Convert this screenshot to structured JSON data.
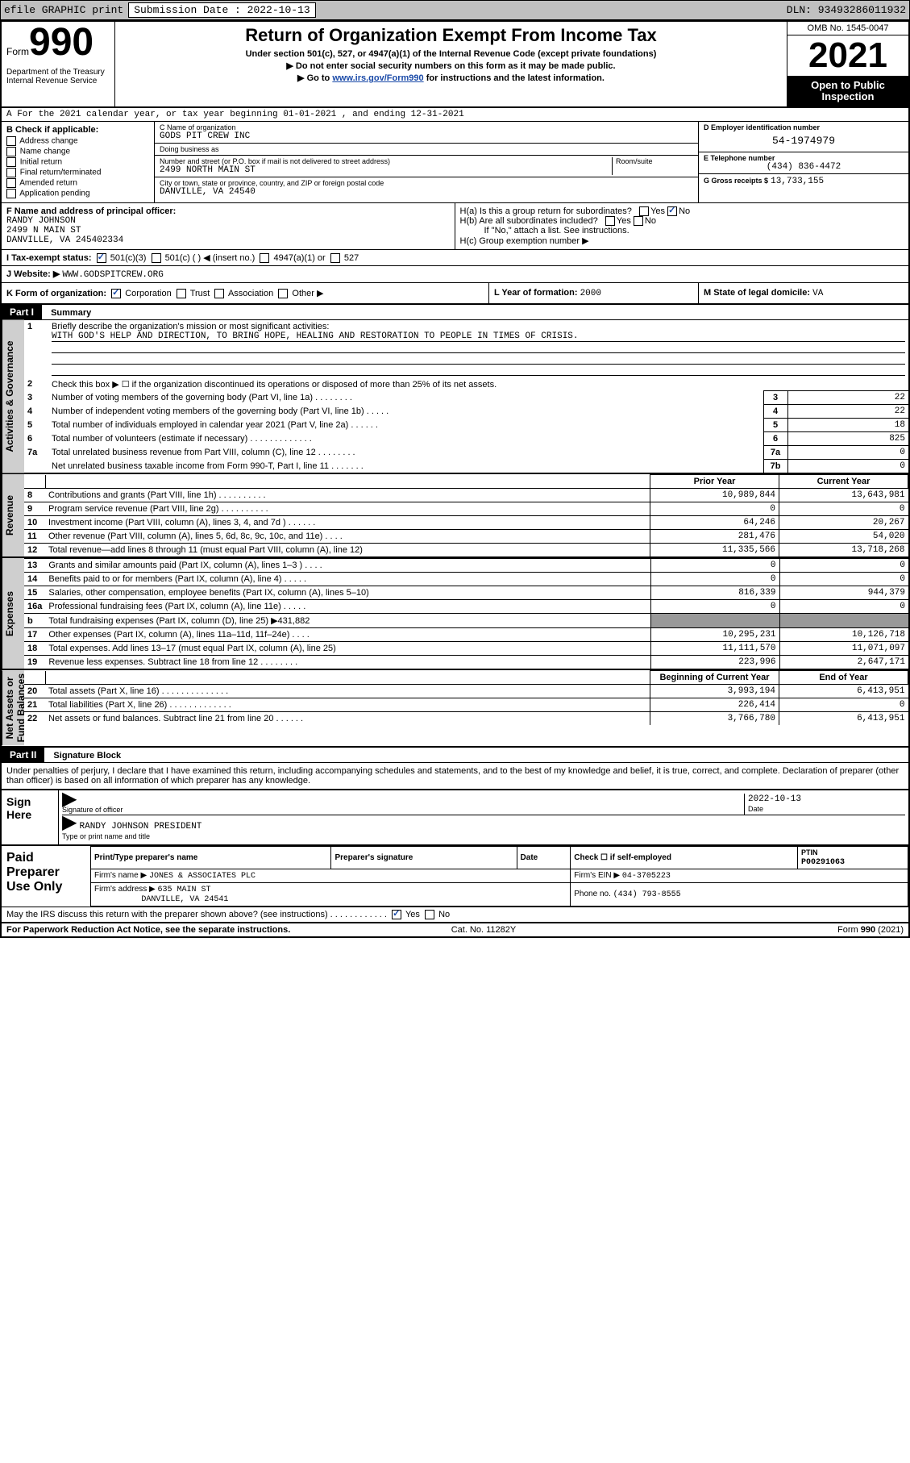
{
  "topbar": {
    "efile": "efile GRAPHIC print",
    "subdate_lbl": "Submission Date : 2022-10-13",
    "dln": "DLN: 93493286011932"
  },
  "header": {
    "form_lbl": "Form",
    "form_no": "990",
    "title": "Return of Organization Exempt From Income Tax",
    "sub1": "Under section 501(c), 527, or 4947(a)(1) of the Internal Revenue Code (except private foundations)",
    "sub2": "▶ Do not enter social security numbers on this form as it may be made public.",
    "sub3_pre": "▶ Go to ",
    "sub3_link": "www.irs.gov/Form990",
    "sub3_post": " for instructions and the latest information.",
    "dept": "Department of the Treasury\nInternal Revenue Service",
    "omb": "OMB No. 1545-0047",
    "year": "2021",
    "otp": "Open to Public Inspection"
  },
  "row_a": "A For the 2021 calendar year, or tax year beginning 01-01-2021   , and ending 12-31-2021",
  "b": {
    "lbl": "B Check if applicable:",
    "items": [
      "Address change",
      "Name change",
      "Initial return",
      "Final return/terminated",
      "Amended return",
      "Application pending"
    ]
  },
  "c": {
    "name_lbl": "C Name of organization",
    "name": "GODS PIT CREW INC",
    "dba_lbl": "Doing business as",
    "dba": "",
    "addr_lbl": "Number and street (or P.O. box if mail is not delivered to street address)",
    "room_lbl": "Room/suite",
    "addr": "2499 NORTH MAIN ST",
    "city_lbl": "City or town, state or province, country, and ZIP or foreign postal code",
    "city": "DANVILLE, VA  24540"
  },
  "d": {
    "ein_lbl": "D Employer identification number",
    "ein": "54-1974979",
    "tel_lbl": "E Telephone number",
    "tel": "(434) 836-4472",
    "gross_lbl": "G Gross receipts $",
    "gross": "13,733,155"
  },
  "f": {
    "lbl": "F Name and address of principal officer:",
    "name": "RANDY JOHNSON",
    "addr1": "2499 N MAIN ST",
    "addr2": "DANVILLE, VA  245402334"
  },
  "h": {
    "a": "H(a)  Is this a group return for subordinates?",
    "b": "H(b)  Are all subordinates included?",
    "b2": "If \"No,\" attach a list. See instructions.",
    "c": "H(c)  Group exemption number ▶"
  },
  "i": {
    "lbl": "I   Tax-exempt status:",
    "opts": [
      "501(c)(3)",
      "501(c) (   ) ◀ (insert no.)",
      "4947(a)(1) or",
      "527"
    ]
  },
  "j": {
    "lbl": "J   Website: ▶",
    "val": "WWW.GODSPITCREW.ORG"
  },
  "k": {
    "lbl": "K Form of organization:",
    "opts": [
      "Corporation",
      "Trust",
      "Association",
      "Other ▶"
    ]
  },
  "l": {
    "lbl": "L Year of formation:",
    "val": "2000"
  },
  "m": {
    "lbl": "M State of legal domicile:",
    "val": "VA"
  },
  "part1": {
    "hdr": "Part I",
    "title": "Summary"
  },
  "summary": {
    "q1": "Briefly describe the organization's mission or most significant activities:",
    "q1_ans": "WITH GOD'S HELP AND DIRECTION, TO BRING HOPE, HEALING AND RESTORATION TO PEOPLE IN TIMES OF CRISIS.",
    "q2": "Check this box ▶ ☐  if the organization discontinued its operations or disposed of more than 25% of its net assets.",
    "rows": [
      {
        "n": "3",
        "t": "Number of voting members of the governing body (Part VI, line 1a)   .   .   .   .   .   .   .   .",
        "l": "3",
        "v": "22"
      },
      {
        "n": "4",
        "t": "Number of independent voting members of the governing body (Part VI, line 1b)   .   .   .   .   .",
        "l": "4",
        "v": "22"
      },
      {
        "n": "5",
        "t": "Total number of individuals employed in calendar year 2021 (Part V, line 2a)   .   .   .   .   .   .",
        "l": "5",
        "v": "18"
      },
      {
        "n": "6",
        "t": "Total number of volunteers (estimate if necessary)   .   .   .   .   .   .   .   .   .   .   .   .   .",
        "l": "6",
        "v": "825"
      },
      {
        "n": "7a",
        "t": "Total unrelated business revenue from Part VIII, column (C), line 12   .   .   .   .   .   .   .   .",
        "l": "7a",
        "v": "0"
      },
      {
        "n": "",
        "t": "Net unrelated business taxable income from Form 990-T, Part I, line 11   .   .   .   .   .   .   .",
        "l": "7b",
        "v": "0"
      }
    ]
  },
  "revenue": {
    "h1": "b",
    "h2": "Prior Year",
    "h3": "Current Year",
    "rows": [
      {
        "n": "8",
        "t": "Contributions and grants (Part VIII, line 1h)   .   .   .   .   .   .   .   .   .   .",
        "p": "10,989,844",
        "c": "13,643,981"
      },
      {
        "n": "9",
        "t": "Program service revenue (Part VIII, line 2g)   .   .   .   .   .   .   .   .   .   .",
        "p": "0",
        "c": "0"
      },
      {
        "n": "10",
        "t": "Investment income (Part VIII, column (A), lines 3, 4, and 7d )   .   .   .   .   .   .",
        "p": "64,246",
        "c": "20,267"
      },
      {
        "n": "11",
        "t": "Other revenue (Part VIII, column (A), lines 5, 6d, 8c, 9c, 10c, and 11e)   .   .   .   .",
        "p": "281,476",
        "c": "54,020"
      },
      {
        "n": "12",
        "t": "Total revenue—add lines 8 through 11 (must equal Part VIII, column (A), line 12)",
        "p": "11,335,566",
        "c": "13,718,268"
      }
    ]
  },
  "expenses": {
    "rows": [
      {
        "n": "13",
        "t": "Grants and similar amounts paid (Part IX, column (A), lines 1–3 )   .   .   .   .",
        "p": "0",
        "c": "0"
      },
      {
        "n": "14",
        "t": "Benefits paid to or for members (Part IX, column (A), line 4)   .   .   .   .   .",
        "p": "0",
        "c": "0"
      },
      {
        "n": "15",
        "t": "Salaries, other compensation, employee benefits (Part IX, column (A), lines 5–10)",
        "p": "816,339",
        "c": "944,379"
      },
      {
        "n": "16a",
        "t": "Professional fundraising fees (Part IX, column (A), line 11e)   .   .   .   .   .",
        "p": "0",
        "c": "0"
      },
      {
        "n": "b",
        "t": "Total fundraising expenses (Part IX, column (D), line 25) ▶431,882",
        "p": "",
        "c": "",
        "blank": true
      },
      {
        "n": "17",
        "t": "Other expenses (Part IX, column (A), lines 11a–11d, 11f–24e)   .   .   .   .",
        "p": "10,295,231",
        "c": "10,126,718"
      },
      {
        "n": "18",
        "t": "Total expenses. Add lines 13–17 (must equal Part IX, column (A), line 25)",
        "p": "11,111,570",
        "c": "11,071,097"
      },
      {
        "n": "19",
        "t": "Revenue less expenses. Subtract line 18 from line 12   .   .   .   .   .   .   .   .",
        "p": "223,996",
        "c": "2,647,171"
      }
    ]
  },
  "netassets": {
    "h2": "Beginning of Current Year",
    "h3": "End of Year",
    "rows": [
      {
        "n": "20",
        "t": "Total assets (Part X, line 16)   .   .   .   .   .   .   .   .   .   .   .   .   .   .",
        "p": "3,993,194",
        "c": "6,413,951"
      },
      {
        "n": "21",
        "t": "Total liabilities (Part X, line 26)   .   .   .   .   .   .   .   .   .   .   .   .   .",
        "p": "226,414",
        "c": "0"
      },
      {
        "n": "22",
        "t": "Net assets or fund balances. Subtract line 21 from line 20   .   .   .   .   .   .",
        "p": "3,766,780",
        "c": "6,413,951"
      }
    ]
  },
  "sidelabels": {
    "ag": "Activities & Governance",
    "rev": "Revenue",
    "exp": "Expenses",
    "na": "Net Assets or\nFund Balances"
  },
  "part2": {
    "hdr": "Part II",
    "title": "Signature Block"
  },
  "sigdecl": "Under penalties of perjury, I declare that I have examined this return, including accompanying schedules and statements, and to the best of my knowledge and belief, it is true, correct, and complete. Declaration of preparer (other than officer) is based on all information of which preparer has any knowledge.",
  "sign": {
    "here": "Sign Here",
    "sig_lbl": "Signature of officer",
    "date_lbl": "Date",
    "date": "2022-10-13",
    "name": "RANDY JOHNSON PRESIDENT",
    "name_lbl": "Type or print name and title"
  },
  "prep": {
    "lbl": "Paid Preparer Use Only",
    "h": [
      "Print/Type preparer's name",
      "Preparer's signature",
      "Date",
      "Check ☐ if self-employed",
      "PTIN"
    ],
    "ptin": "P00291063",
    "firm_lbl": "Firm's name   ▶",
    "firm": "JONES & ASSOCIATES PLC",
    "ein_lbl": "Firm's EIN ▶",
    "ein": "04-3705223",
    "addr_lbl": "Firm's address ▶",
    "addr1": "635 MAIN ST",
    "addr2": "DANVILLE, VA  24541",
    "phone_lbl": "Phone no.",
    "phone": "(434) 793-8555"
  },
  "may": "May the IRS discuss this return with the preparer shown above? (see instructions)   .   .   .   .   .   .   .   .   .   .   .   .",
  "footer": {
    "l": "For Paperwork Reduction Act Notice, see the separate instructions.",
    "m": "Cat. No. 11282Y",
    "r": "Form 990 (2021)"
  }
}
